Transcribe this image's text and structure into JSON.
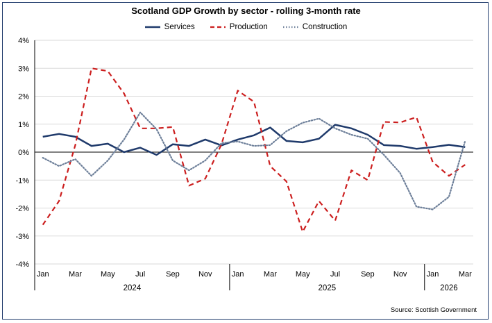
{
  "chart_data": {
    "type": "line",
    "title": "Scotland GDP Growth by sector - rolling 3-month rate",
    "source": "Source: Scottish Government",
    "y_tick_labels": [
      "4%",
      "3%",
      "2%",
      "1%",
      "0%",
      "-1%",
      "-2%",
      "-3%",
      "-4%"
    ],
    "ylim": [
      -4,
      4
    ],
    "grid": true,
    "legend_position": "top-center",
    "x_tick_labels": [
      "Jan",
      "Mar",
      "May",
      "Jul",
      "Sep",
      "Nov",
      "Jan",
      "Mar",
      "May",
      "Jul",
      "Sep",
      "Nov",
      "Jan",
      "Mar"
    ],
    "year_labels": [
      "2024",
      "2025",
      "2026"
    ],
    "x": [
      "Jan 2024",
      "Feb 2024",
      "Mar 2024",
      "Apr 2024",
      "May 2024",
      "Jun 2024",
      "Jul 2024",
      "Aug 2024",
      "Sep 2024",
      "Oct 2024",
      "Nov 2024",
      "Dec 2024",
      "Jan 2025",
      "Feb 2025",
      "Mar 2025",
      "Apr 2025",
      "May 2025",
      "Jun 2025",
      "Jul 2025",
      "Aug 2025",
      "Sep 2025",
      "Oct 2025",
      "Nov 2025",
      "Dec 2025",
      "Jan 2026",
      "Feb 2026",
      "Mar 2026"
    ],
    "series": [
      {
        "name": "Services",
        "color": "#1f3a6b",
        "style": "solid",
        "values": [
          0.55,
          0.65,
          0.55,
          0.22,
          0.3,
          0.0,
          0.16,
          -0.1,
          0.28,
          0.22,
          0.45,
          0.24,
          0.45,
          0.6,
          0.88,
          0.4,
          0.35,
          0.48,
          0.98,
          0.85,
          0.62,
          0.25,
          0.22,
          0.12,
          0.18,
          0.26,
          0.18
        ]
      },
      {
        "name": "Production",
        "color": "#cc1f1f",
        "style": "dashed",
        "values": [
          -2.6,
          -1.75,
          0.25,
          3.0,
          2.9,
          2.1,
          0.85,
          0.85,
          0.9,
          -1.2,
          -0.95,
          0.28,
          2.2,
          1.8,
          -0.5,
          -1.05,
          -2.85,
          -1.75,
          -2.45,
          -0.65,
          -1.0,
          1.08,
          1.06,
          1.25,
          -0.35,
          -0.85,
          -0.45
        ]
      },
      {
        "name": "Construction",
        "color": "#6d7f99",
        "style": "dotted",
        "values": [
          -0.2,
          -0.5,
          -0.25,
          -0.85,
          -0.3,
          0.45,
          1.42,
          0.82,
          -0.3,
          -0.65,
          -0.3,
          0.32,
          0.38,
          0.22,
          0.25,
          0.75,
          1.05,
          1.2,
          0.85,
          0.62,
          0.48,
          -0.1,
          -0.75,
          -1.95,
          -2.05,
          -1.6,
          0.4
        ]
      }
    ]
  }
}
